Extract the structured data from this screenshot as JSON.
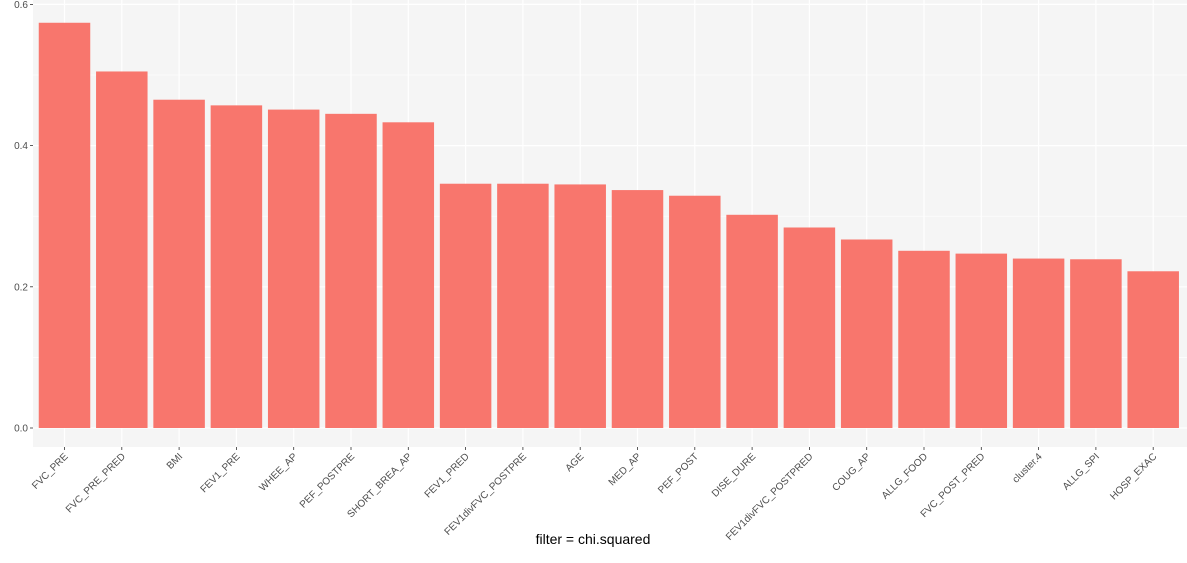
{
  "chart_data": {
    "type": "bar",
    "title": "",
    "xlabel": "filter = chi.squared",
    "ylabel": "",
    "ylim": [
      0,
      0.6
    ],
    "yticks": [
      0.0,
      0.2,
      0.4,
      0.6
    ],
    "ytick_labels": [
      "0.0",
      "0.2",
      "0.4",
      "0.6"
    ],
    "grid": true,
    "legend": "none",
    "bar_color": "#F8766D",
    "panel_background": "#F5F5F5",
    "grid_color": "#FFFFFF",
    "categories": [
      "FVC_PRE",
      "FVC_PRE_PRED",
      "BMI",
      "FEV1_PRE",
      "WHEE_AP",
      "PEF_POSTPRE",
      "SHORT_BREA_AP",
      "FEV1_PRED",
      "FEV1divFVC_POSTPRE",
      "AGE",
      "MED_AP",
      "PEF_POST",
      "DISE_DURE",
      "FEV1divFVC_POSTPRED",
      "COUG_AP",
      "ALLG_FOOD",
      "FVC_POST_PRED",
      "cluster.4",
      "ALLG_SPI",
      "HOSP_EXAC"
    ],
    "values": [
      0.574,
      0.505,
      0.465,
      0.457,
      0.451,
      0.445,
      0.433,
      0.346,
      0.346,
      0.345,
      0.337,
      0.329,
      0.302,
      0.284,
      0.267,
      0.251,
      0.247,
      0.24,
      0.239,
      0.222
    ]
  }
}
